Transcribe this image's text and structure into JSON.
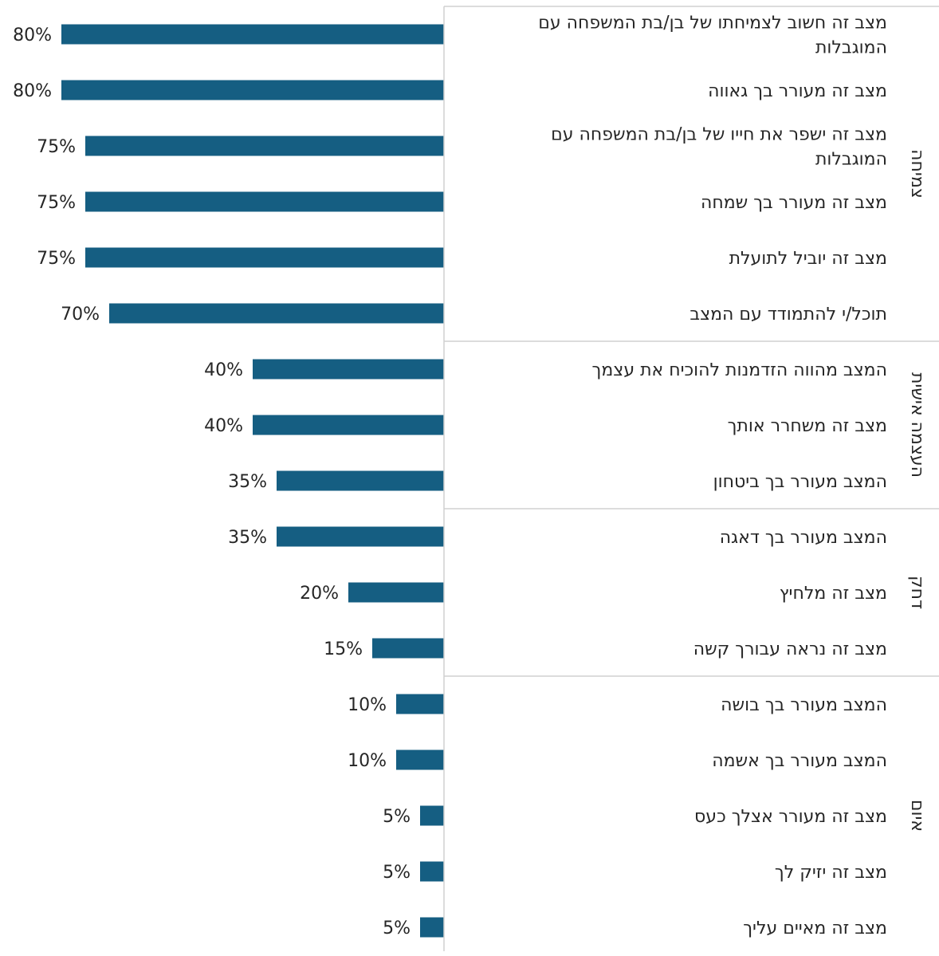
{
  "chart_data": {
    "type": "bar",
    "orientation": "horizontal",
    "bar_color": "#155e82",
    "value_format": "percent",
    "xlim": [
      0,
      100
    ],
    "categories": [
      [
        "מצב זה חשוב לצמיחתו של בן/בת המשפחה עם",
        "המוגבלות"
      ],
      [
        "מצב זה מעורר בך גאווה"
      ],
      [
        "מצב זה ישפר את חייו של בן/בת המשפחה עם",
        "המוגבלות"
      ],
      [
        "מצב זה מעורר בך שמחה"
      ],
      [
        "מצב זה יוביל לתועלת"
      ],
      [
        "תוכל/י להתמודד עם המצב"
      ],
      [
        "המצב מהווה הזדמנות להוכיח את עצמך"
      ],
      [
        "מצב זה משחרר אותך"
      ],
      [
        "המצב מעורר בך ביטחון"
      ],
      [
        "המצב מעורר בך דאגה"
      ],
      [
        "מצב זה מלחיץ"
      ],
      [
        "מצב זה נראה עבורך קשה"
      ],
      [
        "המצב מעורר בך בושה"
      ],
      [
        "המצב מעורר בך אשמה"
      ],
      [
        "מצב זה מעורר אצלך כעס"
      ],
      [
        "מצב זה יזיק לך"
      ],
      [
        "מצב זה מאיים עליך"
      ]
    ],
    "values": [
      80,
      80,
      75,
      75,
      75,
      70,
      40,
      40,
      35,
      35,
      20,
      15,
      10,
      10,
      5,
      5,
      5
    ],
    "labels": [
      "80%",
      "80%",
      "75%",
      "75%",
      "75%",
      "70%",
      "40%",
      "40%",
      "35%",
      "35%",
      "20%",
      "15%",
      "10%",
      "10%",
      "5%",
      "5%",
      "5%"
    ],
    "groups": [
      {
        "name": "צמיחה",
        "start": 0,
        "end": 5
      },
      {
        "name": "העצמה אישית",
        "start": 6,
        "end": 8
      },
      {
        "name": "דחק",
        "start": 9,
        "end": 11
      },
      {
        "name": "איום",
        "start": 12,
        "end": 16
      }
    ]
  }
}
